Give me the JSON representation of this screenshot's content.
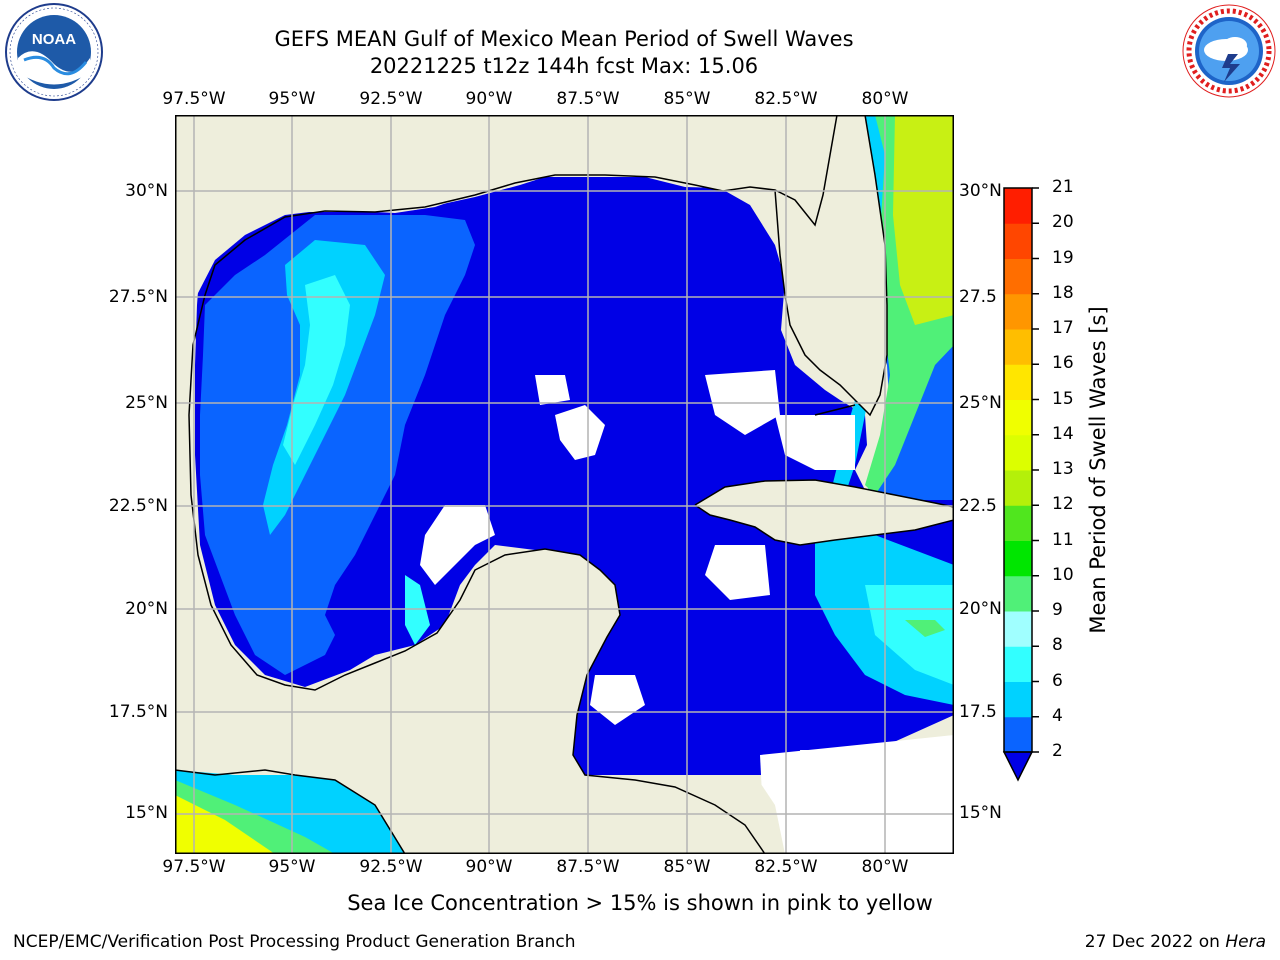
{
  "title": {
    "line1": "GEFS MEAN Gulf of Mexico Mean Period of Swell Waves",
    "line2": "20221225 t12z 144h fcst   Max: 15.06"
  },
  "logos": {
    "left": {
      "name": "noaa-logo",
      "text": "NOAA",
      "ring_text": "NATIONAL OCEANIC AND ATMOSPHERIC ADMINISTRATION · U.S. DEPARTMENT OF COMMERCE"
    },
    "right": {
      "name": "nws-logo",
      "ring_text": "NATIONAL WEATHER SERVICE"
    }
  },
  "map": {
    "lon_labels": [
      "97.5°W",
      "95°W",
      "92.5°W",
      "90°W",
      "87.5°W",
      "85°W",
      "82.5°W",
      "80°W"
    ],
    "lat_labels_left": [
      "30°N",
      "27.5°N",
      "25°N",
      "22.5°N",
      "20°N",
      "17.5°N",
      "15°N"
    ],
    "lat_labels_right": [
      "30°N",
      "27.5",
      "25°N",
      "22.5",
      "20°N",
      "17.5",
      "15°N"
    ],
    "colors": {
      "land": "#eeeedc",
      "ocean_missing": "#ffffff",
      "gridline": "#b4b4b4",
      "coast": "#000000"
    }
  },
  "colorbar": {
    "label": "Mean Period of Swell Waves [s]",
    "tick_labels": [
      "21",
      "20",
      "19",
      "18",
      "17",
      "16",
      "15",
      "14",
      "13",
      "12",
      "11",
      "10",
      "9",
      "8",
      "6",
      "4",
      "2"
    ],
    "bins": [
      {
        "range": "2-4",
        "color": "#0a64ff"
      },
      {
        "range": "4-6",
        "color": "#00d2ff"
      },
      {
        "range": "6-8",
        "color": "#32ffff"
      },
      {
        "range": "8-9",
        "color": "#a0ffff"
      },
      {
        "range": "9-10",
        "color": "#50f078"
      },
      {
        "range": "10-11",
        "color": "#00e600"
      },
      {
        "range": "11-12",
        "color": "#50e61e"
      },
      {
        "range": "12-13",
        "color": "#b4f00a"
      },
      {
        "range": "13-14",
        "color": "#dcff00"
      },
      {
        "range": "14-15",
        "color": "#f0ff00"
      },
      {
        "range": "15-16",
        "color": "#ffe600"
      },
      {
        "range": "16-17",
        "color": "#ffbe00"
      },
      {
        "range": "17-18",
        "color": "#ff9600"
      },
      {
        "range": "18-19",
        "color": "#ff6e00"
      },
      {
        "range": "19-20",
        "color": "#ff4600"
      },
      {
        "range": "20-21",
        "color": "#ff1e00"
      }
    ],
    "under_color": "#0000e6",
    "swell_fills": {
      "deep_blue": "#0000e6",
      "blue": "#0a64ff",
      "cyan": "#00d2ff",
      "light_cyan": "#32ffff",
      "green": "#50f078",
      "yellow_green": "#c8f014",
      "yellow": "#f0ff00"
    }
  },
  "caption": "Sea Ice Concentration > 15% is shown in pink to yellow",
  "footer": {
    "left": "NCEP/EMC/Verification Post Processing Product Generation Branch",
    "right_date": "27 Dec 2022 on",
    "right_host": "Hera"
  }
}
